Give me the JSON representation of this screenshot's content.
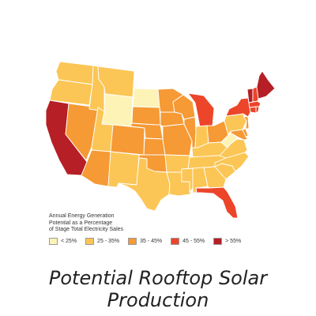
{
  "legend": {
    "title_lines": [
      "Annual Energy Generation",
      "Potential as a Percentage",
      "of Stage Total Electricity Sales"
    ],
    "items": [
      {
        "label": "< 25%",
        "color": "#fdf3b6"
      },
      {
        "label": "25 - 35%",
        "color": "#fbc655"
      },
      {
        "label": "35 - 45%",
        "color": "#f59a35"
      },
      {
        "label": "45 - 55%",
        "color": "#ec452a"
      },
      {
        "label": "> 55%",
        "color": "#b51f25"
      }
    ]
  },
  "caption": "Potential Rooftop Solar Production",
  "map": {
    "border_color": "#ffffff",
    "states": [
      {
        "id": "WA",
        "bin": 1
      },
      {
        "id": "OR",
        "bin": 1
      },
      {
        "id": "CA",
        "bin": 4
      },
      {
        "id": "NV",
        "bin": 2
      },
      {
        "id": "ID",
        "bin": 1
      },
      {
        "id": "MT",
        "bin": 1
      },
      {
        "id": "WY",
        "bin": 0
      },
      {
        "id": "UT",
        "bin": 1
      },
      {
        "id": "AZ",
        "bin": 2
      },
      {
        "id": "CO",
        "bin": 2
      },
      {
        "id": "NM",
        "bin": 1
      },
      {
        "id": "ND",
        "bin": 0
      },
      {
        "id": "SD",
        "bin": 2
      },
      {
        "id": "NE",
        "bin": 2
      },
      {
        "id": "KS",
        "bin": 2
      },
      {
        "id": "OK",
        "bin": 2
      },
      {
        "id": "TX",
        "bin": 1
      },
      {
        "id": "MN",
        "bin": 2
      },
      {
        "id": "IA",
        "bin": 2
      },
      {
        "id": "MO",
        "bin": 2
      },
      {
        "id": "AR",
        "bin": 1
      },
      {
        "id": "LA",
        "bin": 1
      },
      {
        "id": "WI",
        "bin": 2
      },
      {
        "id": "IL",
        "bin": 2
      },
      {
        "id": "MI",
        "bin": 3
      },
      {
        "id": "IN",
        "bin": 1
      },
      {
        "id": "OH",
        "bin": 2
      },
      {
        "id": "KY",
        "bin": 1
      },
      {
        "id": "TN",
        "bin": 1
      },
      {
        "id": "MS",
        "bin": 1
      },
      {
        "id": "AL",
        "bin": 1
      },
      {
        "id": "GA",
        "bin": 1
      },
      {
        "id": "FL",
        "bin": 3
      },
      {
        "id": "SC",
        "bin": 1
      },
      {
        "id": "NC",
        "bin": 1
      },
      {
        "id": "VA",
        "bin": 1
      },
      {
        "id": "WV",
        "bin": 0
      },
      {
        "id": "MD",
        "bin": 2
      },
      {
        "id": "DE",
        "bin": 2
      },
      {
        "id": "PA",
        "bin": 1
      },
      {
        "id": "NJ",
        "bin": 2
      },
      {
        "id": "NY",
        "bin": 3
      },
      {
        "id": "CT",
        "bin": 3
      },
      {
        "id": "RI",
        "bin": 3
      },
      {
        "id": "MA",
        "bin": 3
      },
      {
        "id": "VT",
        "bin": 4
      },
      {
        "id": "NH",
        "bin": 3
      },
      {
        "id": "ME",
        "bin": 4
      }
    ]
  }
}
